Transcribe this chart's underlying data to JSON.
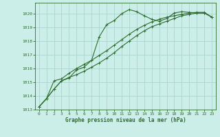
{
  "title": "Graphe pression niveau de la mer (hPa)",
  "background_color": "#cceee8",
  "grid_color": "#aad4ce",
  "line_color": "#2d6b2d",
  "xlim": [
    -0.5,
    23.5
  ],
  "ylim": [
    1013.0,
    1020.8
  ],
  "yticks": [
    1013,
    1014,
    1015,
    1016,
    1017,
    1018,
    1019,
    1020
  ],
  "xticks": [
    0,
    1,
    2,
    3,
    4,
    5,
    6,
    7,
    8,
    9,
    10,
    11,
    12,
    13,
    14,
    15,
    16,
    17,
    18,
    19,
    20,
    21,
    22,
    23
  ],
  "series": [
    [
      1013.2,
      1013.8,
      1014.5,
      1015.1,
      1015.3,
      1015.9,
      1016.1,
      1016.6,
      1018.3,
      1019.2,
      1019.5,
      1020.0,
      1020.3,
      1020.15,
      1019.85,
      1019.6,
      1019.45,
      1019.65,
      1020.05,
      1020.15,
      1020.1,
      1020.05,
      1020.05,
      1019.75
    ],
    [
      1013.2,
      1013.8,
      1015.1,
      1015.25,
      1015.65,
      1016.0,
      1016.3,
      1016.6,
      1016.95,
      1017.3,
      1017.7,
      1018.1,
      1018.5,
      1018.85,
      1019.15,
      1019.4,
      1019.6,
      1019.75,
      1019.85,
      1019.95,
      1020.05,
      1020.1,
      1020.1,
      1019.75
    ],
    [
      1013.2,
      1013.8,
      1014.5,
      1015.1,
      1015.35,
      1015.55,
      1015.8,
      1016.1,
      1016.4,
      1016.75,
      1017.15,
      1017.6,
      1018.0,
      1018.4,
      1018.75,
      1019.05,
      1019.25,
      1019.45,
      1019.65,
      1019.85,
      1019.95,
      1020.05,
      1020.05,
      1019.75
    ]
  ]
}
